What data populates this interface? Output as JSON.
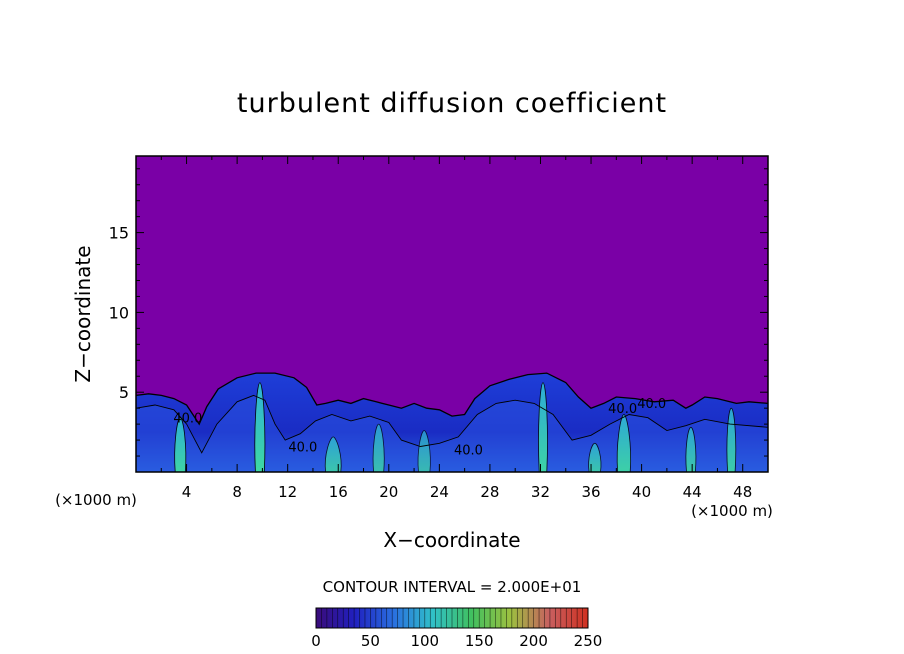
{
  "chart_data": {
    "type": "heatmap",
    "title": "turbulent diffusion coefficient",
    "xlabel": "X−coordinate",
    "ylabel": "Z−coordinate",
    "x_unit_left": "(×1000 m)",
    "x_unit_right": "(×1000 m)",
    "xlim": [
      0,
      50
    ],
    "ylim": [
      0,
      19.8
    ],
    "xticks": [
      4,
      8,
      12,
      16,
      20,
      24,
      28,
      32,
      36,
      40,
      44,
      48
    ],
    "yticks": [
      5,
      10,
      15
    ],
    "background_color": "#7a00a6",
    "contour_interval_text": "CONTOUR INTERVAL = 2.000E+01",
    "contour_labels": [
      {
        "text": "40.0",
        "x": 4.1,
        "z": 3.1
      },
      {
        "text": "40.0",
        "x": 13.2,
        "z": 1.3
      },
      {
        "text": "40.0",
        "x": 38.5,
        "z": 3.7
      },
      {
        "text": "40.0",
        "x": 26.3,
        "z": 1.1
      },
      {
        "text": "40.0",
        "x": 40.8,
        "z": 4.0
      }
    ],
    "boundary_top": [
      [
        0,
        4.8
      ],
      [
        1,
        4.9
      ],
      [
        2,
        4.8
      ],
      [
        3,
        4.6
      ],
      [
        4,
        4.2
      ],
      [
        5,
        3.0
      ],
      [
        5.6,
        4.1
      ],
      [
        6.5,
        5.2
      ],
      [
        8,
        5.9
      ],
      [
        9.5,
        6.2
      ],
      [
        11,
        6.2
      ],
      [
        12.5,
        5.9
      ],
      [
        13.5,
        5.3
      ],
      [
        14.3,
        4.2
      ],
      [
        15,
        4.3
      ],
      [
        16,
        4.5
      ],
      [
        17,
        4.3
      ],
      [
        18,
        4.6
      ],
      [
        19,
        4.4
      ],
      [
        20,
        4.2
      ],
      [
        21,
        4.0
      ],
      [
        22,
        4.3
      ],
      [
        23,
        4.0
      ],
      [
        24,
        3.9
      ],
      [
        25,
        3.5
      ],
      [
        26,
        3.6
      ],
      [
        26.8,
        4.6
      ],
      [
        28,
        5.4
      ],
      [
        29.5,
        5.8
      ],
      [
        31,
        6.1
      ],
      [
        32.5,
        6.2
      ],
      [
        34,
        5.6
      ],
      [
        35,
        4.7
      ],
      [
        36,
        4.0
      ],
      [
        37,
        4.3
      ],
      [
        38,
        4.7
      ],
      [
        39.5,
        4.6
      ],
      [
        41,
        4.4
      ],
      [
        42.5,
        4.5
      ],
      [
        43.5,
        4.0
      ],
      [
        44,
        4.2
      ],
      [
        45,
        4.7
      ],
      [
        46,
        4.6
      ],
      [
        47.5,
        4.3
      ],
      [
        48.5,
        4.4
      ],
      [
        50,
        4.3
      ]
    ],
    "inner_contour": [
      [
        0,
        4.0
      ],
      [
        1.5,
        4.2
      ],
      [
        3,
        3.9
      ],
      [
        4,
        3.0
      ],
      [
        5.2,
        1.2
      ],
      [
        6.4,
        3.0
      ],
      [
        8,
        4.4
      ],
      [
        9.3,
        4.8
      ],
      [
        10.2,
        4.5
      ],
      [
        11,
        3.0
      ],
      [
        11.8,
        2.0
      ],
      [
        13,
        2.4
      ],
      [
        14.2,
        3.2
      ],
      [
        15.5,
        3.6
      ],
      [
        17,
        3.2
      ],
      [
        18.5,
        3.5
      ],
      [
        20,
        3.1
      ],
      [
        21,
        2.0
      ],
      [
        22.5,
        1.6
      ],
      [
        24,
        1.8
      ],
      [
        25.5,
        2.2
      ],
      [
        27,
        3.6
      ],
      [
        28.5,
        4.3
      ],
      [
        30,
        4.5
      ],
      [
        31.5,
        4.3
      ],
      [
        33,
        3.6
      ],
      [
        34.5,
        2.0
      ],
      [
        36,
        2.3
      ],
      [
        37.5,
        3.0
      ],
      [
        39,
        3.6
      ],
      [
        40.5,
        3.4
      ],
      [
        42,
        2.6
      ],
      [
        43.5,
        2.9
      ],
      [
        45,
        3.3
      ],
      [
        47,
        3.0
      ],
      [
        50,
        2.8
      ]
    ],
    "plumes": [
      {
        "x": 3.5,
        "width": 0.8,
        "top": 3.4,
        "intensity": 0.92
      },
      {
        "x": 9.8,
        "width": 0.7,
        "top": 5.6,
        "intensity": 0.95
      },
      {
        "x": 15.6,
        "width": 1.2,
        "top": 2.2,
        "intensity": 0.8
      },
      {
        "x": 19.2,
        "width": 0.8,
        "top": 3.0,
        "intensity": 0.75
      },
      {
        "x": 22.8,
        "width": 0.9,
        "top": 2.6,
        "intensity": 0.7
      },
      {
        "x": 32.2,
        "width": 0.6,
        "top": 5.6,
        "intensity": 0.9
      },
      {
        "x": 36.3,
        "width": 0.9,
        "top": 1.8,
        "intensity": 0.8
      },
      {
        "x": 38.6,
        "width": 1.0,
        "top": 3.6,
        "intensity": 0.88
      },
      {
        "x": 43.9,
        "width": 0.7,
        "top": 2.8,
        "intensity": 0.82
      },
      {
        "x": 47.1,
        "width": 0.6,
        "top": 4.0,
        "intensity": 0.85
      }
    ],
    "colorbar": {
      "min": 0,
      "max": 250,
      "tick_values": [
        0,
        50,
        100,
        150,
        200,
        250
      ],
      "tick_labels": [
        "0",
        "50",
        "100",
        "150",
        "200",
        "250"
      ],
      "stops": [
        "#3a0c7a",
        "#2020c0",
        "#2a70e0",
        "#30c0c8",
        "#40c060",
        "#9cc040",
        "#c86060",
        "#d03020"
      ]
    },
    "grid": false,
    "legend": "colorbar-bottom"
  }
}
